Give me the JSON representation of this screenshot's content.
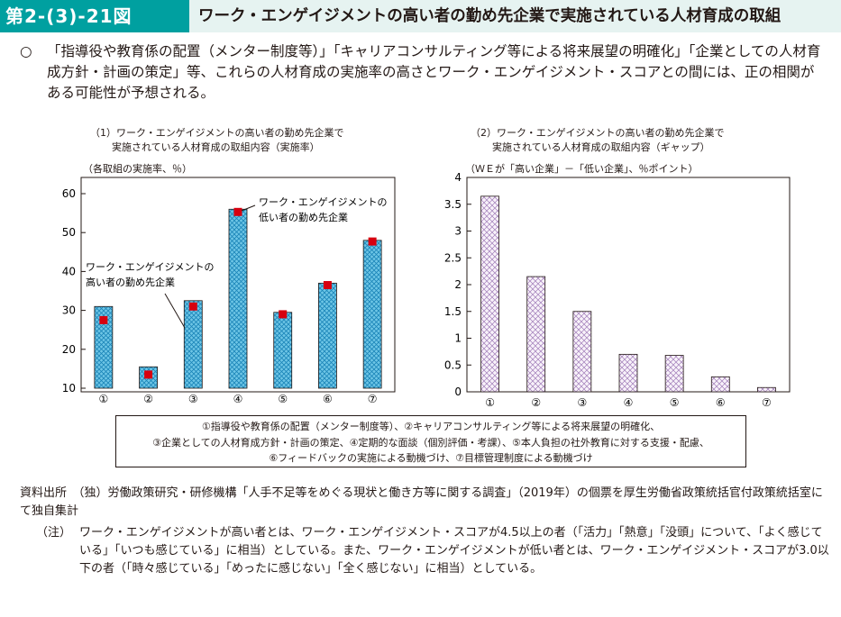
{
  "header": {
    "figure_number": "第2-(3)-21図",
    "title": "ワーク・エンゲイジメントの高い者の勤め先企業で実施されている人材育成の取組"
  },
  "summary": {
    "mark": "○",
    "text": "「指導役や教育係の配置（メンター制度等）」「キャリアコンサルティング等による将来展望の明確化」「企業としての人材育成方針・計画の策定」等、これらの人材育成の実施率の高さとワーク・エンゲイジメント・スコアとの間には、正の相関がある可能性が予想される。"
  },
  "chart_data": [
    {
      "type": "bar",
      "title_line1": "（1）ワーク・エンゲイジメントの高い者の勤め先企業で",
      "title_line2": "実施されている人材育成の取組内容（実施率）",
      "ylabel": "（各取組の実施率、％）",
      "categories": [
        "①",
        "②",
        "③",
        "④",
        "⑤",
        "⑥",
        "⑦"
      ],
      "ylim": [
        10,
        60
      ],
      "yticks": [
        "10",
        "20",
        "30",
        "40",
        "50",
        "60"
      ],
      "series": [
        {
          "name": "ワーク・エンゲイジメントの高い者の勤め先企業",
          "kind": "bar",
          "values": [
            31,
            15.5,
            32.5,
            56,
            29.5,
            37,
            48
          ]
        },
        {
          "name": "ワーク・エンゲイジメントの低い者の勤め先企業",
          "kind": "marker",
          "values": [
            27.5,
            13.5,
            31,
            55.3,
            29,
            36.5,
            47.7
          ]
        }
      ],
      "annotations": {
        "high_line1": "ワーク・エンゲイジメントの",
        "high_line2": "高い者の勤め先企業",
        "low_line1": "ワーク・エンゲイジメントの",
        "low_line2": "低い者の勤め先企業"
      },
      "colors": {
        "bar": "#6ec6e6",
        "bar_hatch": "#1a84b8",
        "marker": "#d7000f"
      }
    },
    {
      "type": "bar",
      "title_line1": "（2）ワーク・エンゲイジメントの高い者の勤め先企業で",
      "title_line2": "実施されている人材育成の取組内容（ギャップ）",
      "ylabel": "（ＷＥが「高い企業」－「低い企業」、％ポイント）",
      "categories": [
        "①",
        "②",
        "③",
        "④",
        "⑤",
        "⑥",
        "⑦"
      ],
      "ylim": [
        0,
        4
      ],
      "yticks": [
        "0",
        "0.5",
        "1",
        "1.5",
        "2",
        "2.5",
        "3",
        "3.5",
        "4"
      ],
      "values": [
        3.65,
        2.15,
        1.5,
        0.7,
        0.68,
        0.28,
        0.08
      ],
      "colors": {
        "bar": "#f5eef8",
        "bar_hatch": "#a07cb8"
      }
    }
  ],
  "legend": {
    "line1": "①指導役や教育係の配置（メンター制度等）、②キャリアコンサルティング等による将来展望の明確化、",
    "line2": "③企業としての人材育成方針・計画の策定、④定期的な面談（個別評価・考課）、⑤本人負担の社外教育に対する支援・配慮、",
    "line3": "⑥フィードバックの実施による動機づけ、⑦目標管理制度による動機づけ"
  },
  "source": {
    "text": "資料出所　（独）労働政策研究・研修機構「人手不足等をめぐる現状と働き方等に関する調査」（2019年）の個票を厚生労働省政策統括官付政策統括室にて独自集計"
  },
  "note": {
    "label": "（注）",
    "text": "ワーク・エンゲイジメントが高い者とは、ワーク・エンゲイジメント・スコアが4.5以上の者（「活力」「熱意」「没頭」について、「よく感じている」「いつも感じている」に相当）としている。また、ワーク・エンゲイジメントが低い者とは、ワーク・エンゲイジメント・スコアが3.0以下の者（「時々感じている」「めったに感じない」「全く感じない」に相当）としている。"
  }
}
